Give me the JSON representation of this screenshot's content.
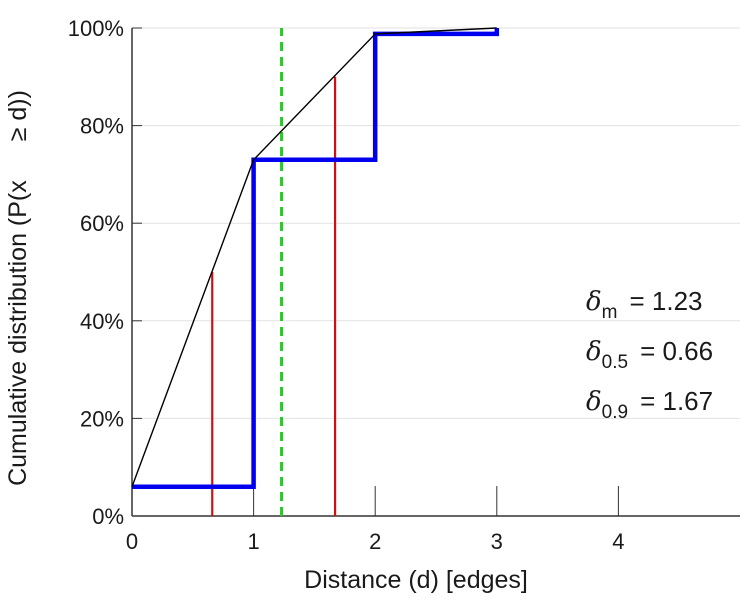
{
  "chart_data": {
    "type": "line",
    "title": "",
    "xlabel": "Distance (d) [edges]",
    "ylabel_parts": [
      "Cumulative distribution (P(x",
      "≥ d))"
    ],
    "xlim": [
      0,
      5
    ],
    "ylim": [
      0,
      100
    ],
    "x_ticks": [
      0,
      1,
      2,
      3,
      4
    ],
    "x_tick_labels": [
      "0",
      "1",
      "2",
      "3",
      "4"
    ],
    "y_ticks": [
      0,
      20,
      40,
      60,
      80,
      100
    ],
    "y_tick_labels": [
      "0%",
      "20%",
      "40%",
      "60%",
      "80%",
      "100%"
    ],
    "grid": "horizontal",
    "series": [
      {
        "kind": "step",
        "color": "#0000ee",
        "points": [
          [
            0,
            6
          ],
          [
            1,
            6
          ],
          [
            1,
            73
          ],
          [
            2,
            73
          ],
          [
            2,
            98.8
          ],
          [
            3,
            98.8
          ],
          [
            3,
            100
          ]
        ]
      },
      {
        "kind": "line",
        "color": "#000000",
        "points": [
          [
            0,
            6
          ],
          [
            1,
            73
          ],
          [
            2,
            98.8
          ],
          [
            3,
            100
          ]
        ]
      }
    ],
    "markers": [
      {
        "kind": "vline",
        "style": "solid",
        "color": "#d01010",
        "x": 0.66,
        "y_top": 50
      },
      {
        "kind": "vline",
        "style": "solid",
        "color": "#d01010",
        "x": 1.67,
        "y_top": 90
      },
      {
        "kind": "vline",
        "style": "dashed",
        "color": "#22cc22",
        "x": 1.23,
        "y_top": 100
      }
    ],
    "annotations": [
      {
        "symbol": "δ",
        "sub": "m",
        "text": "= 1.23"
      },
      {
        "symbol": "δ",
        "sub": "0.5",
        "text": "= 0.66"
      },
      {
        "symbol": "δ",
        "sub": "0.9",
        "text": "= 1.67"
      }
    ]
  }
}
